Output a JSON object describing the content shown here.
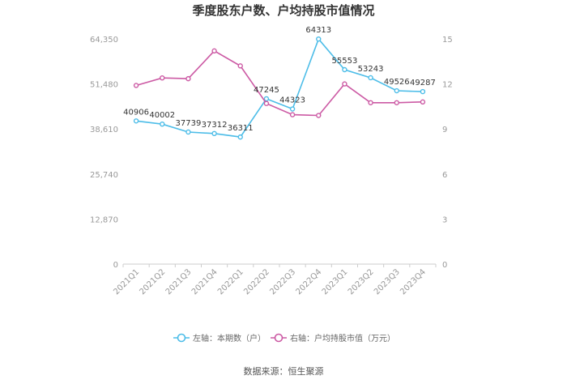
{
  "chart_data": {
    "type": "line",
    "title": "季度股东户数、户均持股市值情况",
    "categories": [
      "2021Q1",
      "2021Q2",
      "2021Q3",
      "2021Q4",
      "2022Q1",
      "2022Q2",
      "2022Q3",
      "2022Q4",
      "2023Q1",
      "2023Q2",
      "2023Q3",
      "2023Q4"
    ],
    "left_axis": {
      "min": 0,
      "max": 64350,
      "ticks": [
        "0",
        "12,870",
        "25,740",
        "38,610",
        "51,480",
        "64,350"
      ]
    },
    "right_axis": {
      "min": 0,
      "max": 15,
      "ticks": [
        "0",
        "3",
        "6",
        "9",
        "12",
        "15"
      ]
    },
    "series": [
      {
        "name": "左轴：本期数（户）",
        "axis": "left",
        "color": "#4dbde8",
        "values": [
          40906,
          40002,
          37739,
          37312,
          36311,
          47245,
          44323,
          64313,
          55553,
          53243,
          49526,
          49287
        ],
        "labels": [
          "40906",
          "40002",
          "37739",
          "37312",
          "36311",
          "47245",
          "44323",
          "64313",
          "55553",
          "53243",
          "49526",
          "49287"
        ]
      },
      {
        "name": "右轴：户均持股市值（万元）",
        "axis": "right",
        "color": "#cc5aa4",
        "values": [
          11.9,
          12.4,
          12.35,
          14.2,
          13.2,
          10.7,
          9.95,
          9.9,
          12.0,
          10.75,
          10.75,
          10.8
        ]
      }
    ],
    "grid": false,
    "legend_position": "bottom"
  },
  "source": "数据来源：恒生聚源"
}
